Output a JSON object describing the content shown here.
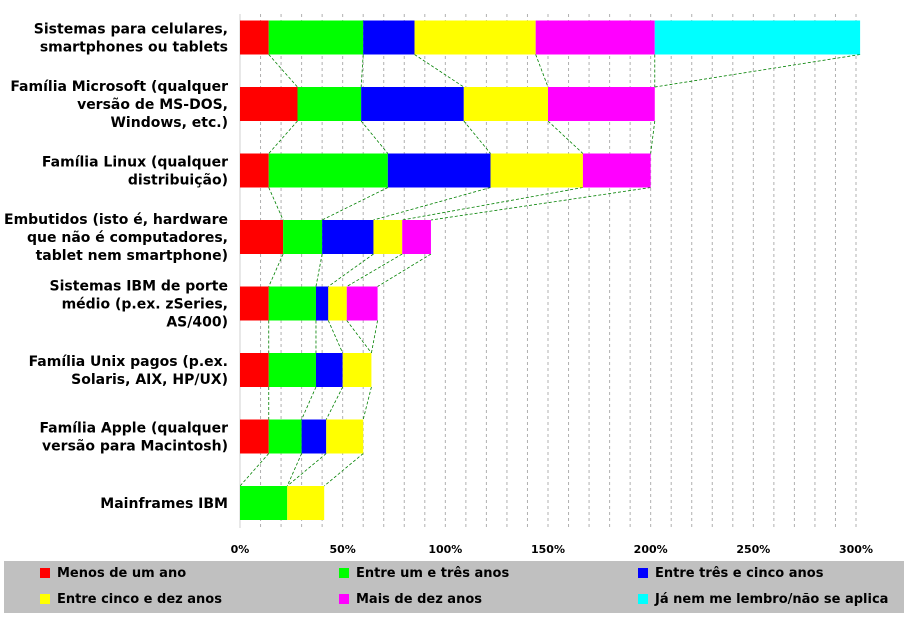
{
  "chart_data": {
    "type": "bar",
    "orientation": "horizontal",
    "stacked": true,
    "categories": [
      [
        "Sistemas para celulares,",
        "smartphones ou tablets"
      ],
      [
        "Família Microsoft (qualquer",
        "versão de MS-DOS,",
        "Windows, etc.)"
      ],
      [
        "Família Linux (qualquer",
        "distribuição)"
      ],
      [
        "Embutidos (isto é, hardware",
        "que não é computadores,",
        "tablet nem smartphone)"
      ],
      [
        "Sistemas IBM de porte",
        "médio (p.ex. zSeries,",
        "AS/400)"
      ],
      [
        "Família Unix pagos (p.ex.",
        "Solaris, AIX, HP/UX)"
      ],
      [
        "Família Apple (qualquer",
        "versão para Macintosh)"
      ],
      [
        "Mainframes IBM"
      ]
    ],
    "series": [
      {
        "name": "Menos de um ano",
        "color": "#ff0000",
        "values": [
          14,
          28,
          14,
          21,
          14,
          14,
          14,
          0
        ]
      },
      {
        "name": "Entre um e três anos",
        "color": "#00ff00",
        "values": [
          46,
          31,
          58,
          19,
          23,
          23,
          16,
          23
        ]
      },
      {
        "name": "Entre três e cinco anos",
        "color": "#0000ff",
        "values": [
          25,
          50,
          50,
          25,
          6,
          13,
          12,
          0
        ]
      },
      {
        "name": "Entre cinco e dez anos",
        "color": "#ffff00",
        "values": [
          59,
          41,
          45,
          14,
          9,
          14,
          18,
          18
        ]
      },
      {
        "name": "Mais de dez anos",
        "color": "#ff00ff",
        "values": [
          58,
          52,
          33,
          14,
          15,
          0,
          0,
          0
        ]
      },
      {
        "name": "Já nem me lembro/não se aplica",
        "color": "#00ffff",
        "values": [
          100,
          0,
          0,
          0,
          0,
          0,
          0,
          0
        ]
      }
    ],
    "xticks": [
      "0%",
      "50%",
      "100%",
      "150%",
      "200%",
      "250%",
      "300%"
    ],
    "xlim": [
      0,
      300
    ],
    "grid": "vertical dashed",
    "series_lines": true,
    "legend_position": "bottom"
  }
}
